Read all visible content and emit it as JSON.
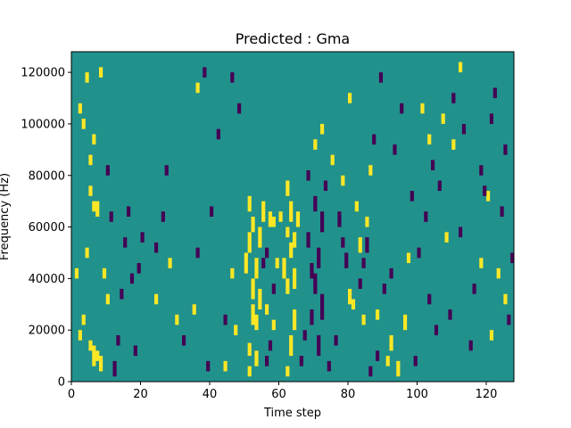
{
  "chart_data": {
    "type": "heatmap",
    "title": "Predicted : Gma",
    "xlabel": "Time step",
    "ylabel": "Frequency (Hz)",
    "xlim": [
      0,
      128
    ],
    "ylim": [
      0,
      128000
    ],
    "x_ticks": [
      0,
      20,
      40,
      60,
      80,
      100,
      120
    ],
    "y_ticks": [
      0,
      20000,
      40000,
      60000,
      80000,
      100000,
      120000
    ],
    "x_tick_labels": [
      "0",
      "20",
      "40",
      "60",
      "80",
      "100",
      "120"
    ],
    "y_tick_labels": [
      "0",
      "20000",
      "40000",
      "60000",
      "80000",
      "100000",
      "120000"
    ],
    "grid": false,
    "colormap": "viridis",
    "value_range": [
      -1,
      1
    ],
    "colors": {
      "low": "#440154",
      "mid": "#21918c",
      "high": "#fde725"
    },
    "n_time_steps": 128,
    "n_freq_bins": 128,
    "background_value": 0,
    "cells": {
      "high": [
        [
          51,
          2,
          6
        ],
        [
          51,
          10,
          15
        ],
        [
          52,
          22,
          30
        ],
        [
          52,
          32,
          40
        ],
        [
          50,
          42,
          50
        ],
        [
          51,
          50,
          58
        ],
        [
          52,
          58,
          64
        ],
        [
          51,
          66,
          72
        ],
        [
          53,
          6,
          12
        ],
        [
          53,
          20,
          26
        ],
        [
          54,
          28,
          36
        ],
        [
          53,
          40,
          48
        ],
        [
          54,
          52,
          60
        ],
        [
          55,
          62,
          70
        ],
        [
          62,
          2,
          6
        ],
        [
          63,
          10,
          18
        ],
        [
          62,
          34,
          40
        ],
        [
          61,
          40,
          48
        ],
        [
          63,
          48,
          54
        ],
        [
          62,
          56,
          60
        ],
        [
          63,
          62,
          70
        ],
        [
          62,
          72,
          78
        ],
        [
          64,
          20,
          28
        ],
        [
          64,
          36,
          44
        ],
        [
          64,
          52,
          58
        ],
        [
          65,
          60,
          66
        ],
        [
          60,
          62,
          66
        ],
        [
          59,
          44,
          48
        ],
        [
          58,
          60,
          64
        ],
        [
          6,
          6,
          14
        ],
        [
          7,
          8,
          12
        ],
        [
          8,
          4,
          10
        ],
        [
          5,
          12,
          16
        ],
        [
          9,
          40,
          44
        ],
        [
          10,
          30,
          34
        ],
        [
          7,
          64,
          70
        ],
        [
          6,
          66,
          70
        ],
        [
          3,
          22,
          26
        ],
        [
          4,
          48,
          52
        ],
        [
          2,
          16,
          20
        ],
        [
          1,
          40,
          44
        ],
        [
          5,
          72,
          76
        ],
        [
          80,
          30,
          36
        ],
        [
          81,
          28,
          32
        ],
        [
          84,
          22,
          26
        ],
        [
          83,
          50,
          56
        ],
        [
          85,
          60,
          64
        ],
        [
          82,
          66,
          70
        ],
        [
          86,
          80,
          84
        ],
        [
          91,
          6,
          10
        ],
        [
          92,
          12,
          18
        ],
        [
          94,
          2,
          8
        ],
        [
          96,
          20,
          26
        ],
        [
          88,
          24,
          28
        ],
        [
          57,
          60,
          66
        ],
        [
          56,
          26,
          30
        ],
        [
          58,
          20,
          24
        ],
        [
          47,
          18,
          22
        ],
        [
          46,
          40,
          44
        ],
        [
          44,
          4,
          8
        ],
        [
          70,
          90,
          94
        ],
        [
          72,
          96,
          100
        ],
        [
          75,
          84,
          88
        ],
        [
          78,
          76,
          80
        ],
        [
          80,
          108,
          112
        ],
        [
          4,
          116,
          120
        ],
        [
          3,
          98,
          102
        ],
        [
          2,
          104,
          108
        ],
        [
          5,
          84,
          88
        ],
        [
          6,
          92,
          96
        ],
        [
          8,
          118,
          122
        ],
        [
          30,
          22,
          26
        ],
        [
          35,
          26,
          30
        ],
        [
          36,
          112,
          116
        ],
        [
          28,
          44,
          48
        ],
        [
          24,
          30,
          34
        ],
        [
          101,
          104,
          108
        ],
        [
          103,
          92,
          96
        ],
        [
          107,
          100,
          104
        ],
        [
          110,
          90,
          94
        ],
        [
          112,
          120,
          124
        ],
        [
          118,
          44,
          48
        ],
        [
          120,
          70,
          74
        ],
        [
          125,
          30,
          34
        ],
        [
          121,
          16,
          20
        ],
        [
          123,
          40,
          44
        ],
        [
          108,
          54,
          58
        ],
        [
          97,
          46,
          50
        ]
      ],
      "low": [
        [
          71,
          10,
          18
        ],
        [
          72,
          24,
          34
        ],
        [
          70,
          34,
          42
        ],
        [
          71,
          44,
          52
        ],
        [
          72,
          58,
          66
        ],
        [
          70,
          66,
          72
        ],
        [
          73,
          74,
          78
        ],
        [
          69,
          22,
          28
        ],
        [
          69,
          40,
          46
        ],
        [
          68,
          52,
          58
        ],
        [
          68,
          78,
          82
        ],
        [
          56,
          6,
          10
        ],
        [
          57,
          12,
          16
        ],
        [
          55,
          44,
          48
        ],
        [
          58,
          34,
          38
        ],
        [
          56,
          48,
          52
        ],
        [
          79,
          44,
          50
        ],
        [
          78,
          52,
          56
        ],
        [
          77,
          60,
          66
        ],
        [
          83,
          36,
          40
        ],
        [
          84,
          44,
          48
        ],
        [
          85,
          50,
          56
        ],
        [
          12,
          2,
          8
        ],
        [
          13,
          14,
          18
        ],
        [
          14,
          32,
          36
        ],
        [
          15,
          52,
          56
        ],
        [
          16,
          64,
          68
        ],
        [
          17,
          38,
          42
        ],
        [
          11,
          62,
          66
        ],
        [
          10,
          80,
          84
        ],
        [
          18,
          10,
          14
        ],
        [
          19,
          42,
          46
        ],
        [
          20,
          54,
          58
        ],
        [
          24,
          50,
          54
        ],
        [
          26,
          62,
          66
        ],
        [
          27,
          80,
          84
        ],
        [
          32,
          14,
          18
        ],
        [
          36,
          48,
          52
        ],
        [
          39,
          4,
          8
        ],
        [
          40,
          64,
          68
        ],
        [
          44,
          22,
          26
        ],
        [
          46,
          116,
          120
        ],
        [
          48,
          104,
          108
        ],
        [
          42,
          94,
          98
        ],
        [
          38,
          118,
          122
        ],
        [
          90,
          34,
          38
        ],
        [
          92,
          40,
          44
        ],
        [
          95,
          104,
          108
        ],
        [
          99,
          6,
          10
        ],
        [
          100,
          48,
          52
        ],
        [
          103,
          30,
          34
        ],
        [
          105,
          18,
          22
        ],
        [
          106,
          74,
          78
        ],
        [
          109,
          24,
          28
        ],
        [
          112,
          56,
          60
        ],
        [
          115,
          12,
          16
        ],
        [
          116,
          34,
          38
        ],
        [
          118,
          80,
          84
        ],
        [
          121,
          100,
          104
        ],
        [
          124,
          64,
          68
        ],
        [
          126,
          22,
          26
        ],
        [
          127,
          46,
          50
        ],
        [
          66,
          6,
          10
        ],
        [
          67,
          16,
          20
        ],
        [
          74,
          4,
          8
        ],
        [
          76,
          14,
          18
        ],
        [
          88,
          8,
          12
        ],
        [
          86,
          2,
          6
        ],
        [
          87,
          92,
          96
        ],
        [
          89,
          116,
          120
        ],
        [
          93,
          88,
          92
        ],
        [
          98,
          70,
          74
        ],
        [
          102,
          62,
          66
        ],
        [
          104,
          82,
          86
        ],
        [
          110,
          108,
          112
        ],
        [
          113,
          96,
          100
        ],
        [
          119,
          72,
          76
        ],
        [
          122,
          110,
          114
        ],
        [
          125,
          88,
          92
        ]
      ]
    }
  }
}
